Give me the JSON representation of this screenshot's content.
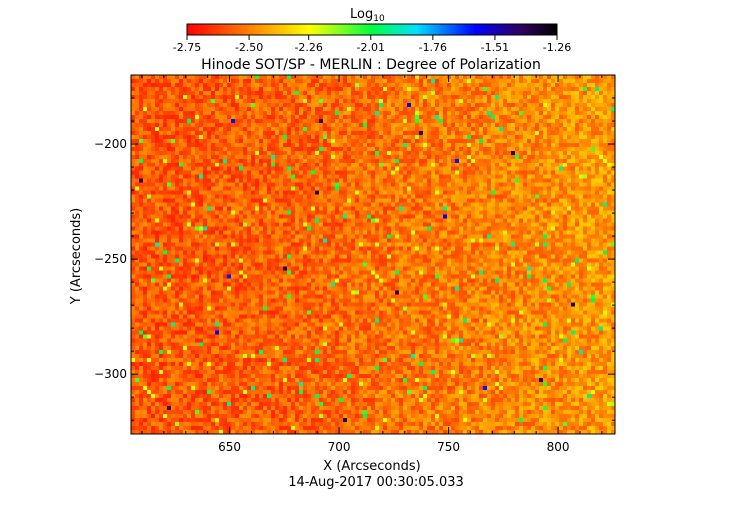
{
  "chart_data": {
    "type": "heatmap",
    "title": "Hinode SOT/SP - MERLIN : Degree of Polarization",
    "subtitle": "14-Aug-2017 00:30:05.033",
    "xlabel": "X (Arcseconds)",
    "ylabel": "Y (Arcseconds)",
    "xlim": [
      605,
      826
    ],
    "ylim": [
      -326,
      -170
    ],
    "xticks": [
      650,
      700,
      750,
      800
    ],
    "yticks": [
      -200,
      -250,
      -300
    ],
    "colorbar": {
      "label": "Log",
      "label_sub": "10",
      "range": [
        -2.75,
        -1.26
      ],
      "ticks": [
        "-2.75",
        "-2.50",
        "-2.26",
        "-2.01",
        "-1.76",
        "-1.51",
        "-1.26"
      ],
      "colors": [
        "#ff0000",
        "#ff7f00",
        "#ffff00",
        "#00ff00",
        "#00ffff",
        "#0000ff",
        "#000000"
      ]
    },
    "grid": false,
    "background_level": [
      -2.62,
      -2.45
    ],
    "description_values": {
      "left_mean": -2.58,
      "right_mean": -2.45
    }
  }
}
